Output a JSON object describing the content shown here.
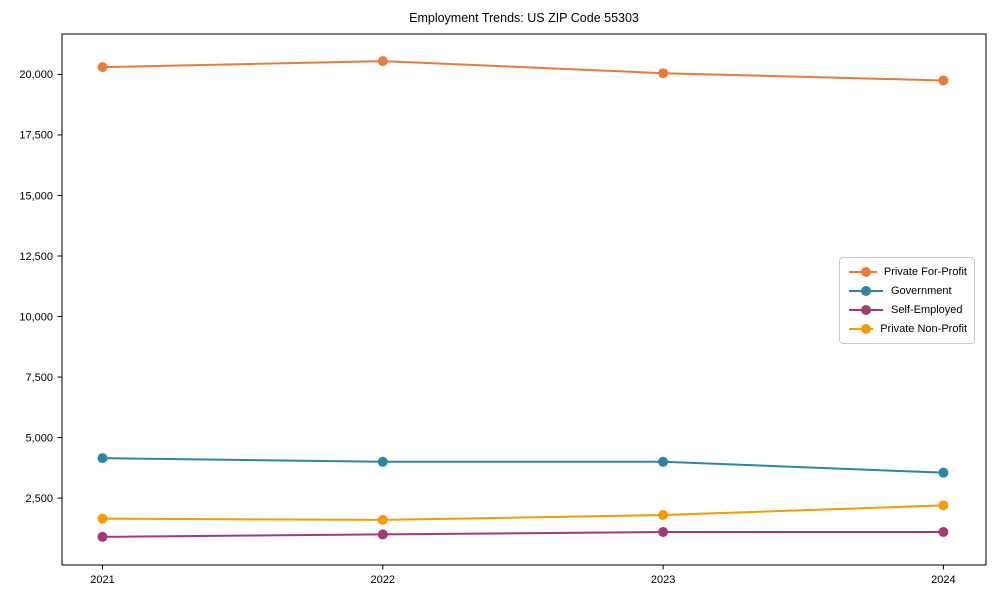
{
  "chart_data": {
    "type": "line",
    "title": "Employment Trends: US ZIP Code 55303",
    "xlabel": "",
    "ylabel": "",
    "categories": [
      "2021",
      "2022",
      "2023",
      "2024"
    ],
    "series": [
      {
        "name": "Private For-Profit",
        "color": "#e87c3e",
        "values": [
          20300,
          20550,
          20050,
          19750
        ]
      },
      {
        "name": "Government",
        "color": "#2e84a4",
        "values": [
          4150,
          4000,
          4000,
          3550
        ]
      },
      {
        "name": "Self-Employed",
        "color": "#a23b72",
        "values": [
          900,
          1000,
          1100,
          1100
        ]
      },
      {
        "name": "Private Non-Profit",
        "color": "#f29c06",
        "values": [
          1650,
          1600,
          1800,
          2200
        ]
      }
    ],
    "y_axis": {
      "ticks": [
        2500,
        5000,
        7500,
        10000,
        12500,
        15000,
        17500,
        20000
      ],
      "tick_labels": [
        "2,500",
        "5,000",
        "7,500",
        "10,000",
        "12,500",
        "15,000",
        "17,500",
        "20,000"
      ]
    },
    "x_axis": {
      "tick_labels": [
        "2021",
        "2022",
        "2023",
        "2024"
      ]
    },
    "ylim": [
      -300,
      21700
    ],
    "grid": false,
    "legend_position": "center-right",
    "marker": "circle",
    "axis_color": "#000000",
    "background_color": "#ffffff"
  }
}
